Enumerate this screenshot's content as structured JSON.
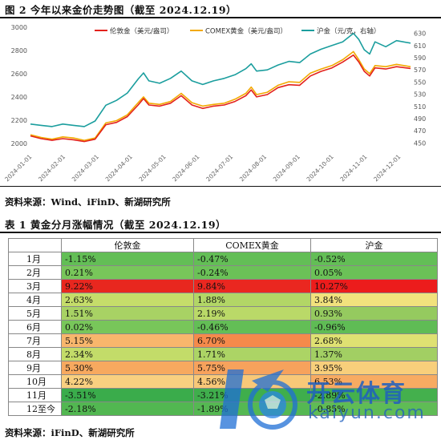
{
  "figure": {
    "title": "图 2 今年以来金价走势图（截至 2024.12.19）",
    "source": "资料来源：Wind、iFinD、新湖研究所"
  },
  "chart_data": {
    "type": "line",
    "legend": [
      "伦敦金（美元/盎司）",
      "COMEX黄金（美元/盎司）",
      "沪金（元/克，右轴）"
    ],
    "legend_placement": "top",
    "colors": {
      "london": "#e3211c",
      "comex": "#f2a900",
      "shfe": "#1b9e9e"
    },
    "y_left_ticks": [
      "3000",
      "2800",
      "2600",
      "2400",
      "2200",
      "2000"
    ],
    "y_left_range": [
      1950,
      3000
    ],
    "y_right_ticks": [
      "630",
      "610",
      "590",
      "570",
      "550",
      "530",
      "510",
      "490",
      "470",
      "450"
    ],
    "y_right_range": [
      440,
      640
    ],
    "x_tick_labels": [
      "2024-01-01",
      "2024-02-01",
      "2024-03-01",
      "2024-04-01",
      "2024-05-01",
      "2024-06-01",
      "2024-07-01",
      "2024-08-01",
      "2024-09-01",
      "2024-10-01",
      "2024-11-01",
      "2024-12-01"
    ],
    "x_range_days": [
      0,
      353
    ],
    "grid": false,
    "series": [
      {
        "name": "伦敦金（美元/盎司）",
        "axis": "left",
        "x": [
          0,
          10,
          20,
          30,
          40,
          50,
          60,
          70,
          80,
          90,
          100,
          105,
          110,
          120,
          130,
          140,
          150,
          160,
          170,
          180,
          190,
          200,
          205,
          210,
          220,
          230,
          240,
          250,
          260,
          270,
          280,
          290,
          300,
          305,
          310,
          315,
          320,
          330,
          340,
          353
        ],
        "y": [
          2063,
          2040,
          2025,
          2040,
          2030,
          2015,
          2035,
          2160,
          2180,
          2230,
          2330,
          2385,
          2330,
          2320,
          2345,
          2410,
          2330,
          2300,
          2320,
          2330,
          2360,
          2410,
          2460,
          2400,
          2420,
          2480,
          2505,
          2500,
          2580,
          2620,
          2650,
          2700,
          2760,
          2700,
          2620,
          2580,
          2650,
          2640,
          2660,
          2645
        ]
      },
      {
        "name": "COMEX黄金（美元/盎司）",
        "axis": "left",
        "x": [
          0,
          10,
          20,
          30,
          40,
          50,
          60,
          70,
          80,
          90,
          100,
          105,
          110,
          120,
          130,
          140,
          150,
          160,
          170,
          180,
          190,
          200,
          205,
          210,
          220,
          230,
          240,
          250,
          260,
          270,
          280,
          290,
          300,
          305,
          310,
          315,
          320,
          330,
          340,
          353
        ],
        "y": [
          2073,
          2050,
          2035,
          2055,
          2045,
          2025,
          2045,
          2175,
          2195,
          2245,
          2350,
          2400,
          2345,
          2335,
          2360,
          2430,
          2350,
          2320,
          2335,
          2345,
          2380,
          2430,
          2485,
          2420,
          2440,
          2500,
          2530,
          2525,
          2605,
          2640,
          2670,
          2720,
          2790,
          2720,
          2640,
          2600,
          2670,
          2660,
          2680,
          2660
        ]
      },
      {
        "name": "沪金（元/克，右轴）",
        "axis": "right",
        "x": [
          0,
          10,
          20,
          30,
          40,
          50,
          60,
          70,
          80,
          90,
          100,
          105,
          110,
          120,
          130,
          140,
          150,
          160,
          170,
          180,
          190,
          200,
          205,
          210,
          220,
          230,
          240,
          250,
          260,
          270,
          280,
          290,
          300,
          305,
          310,
          315,
          320,
          330,
          340,
          353
        ],
        "y": [
          481,
          479,
          477,
          481,
          479,
          477,
          486,
          512,
          520,
          532,
          555,
          565,
          552,
          548,
          556,
          568,
          552,
          546,
          552,
          556,
          562,
          572,
          580,
          568,
          570,
          578,
          584,
          582,
          596,
          604,
          610,
          616,
          630,
          620,
          603,
          596,
          616,
          608,
          618,
          614
        ]
      }
    ]
  },
  "table": {
    "title": "表 1 黄金分月涨幅情况（截至 2024.12.19）",
    "source": "资料来源：iFinD、新湖研究所",
    "headers": [
      "",
      "伦敦金",
      "COMEX黄金",
      "沪金"
    ],
    "rows": [
      {
        "label": "1月",
        "values": [
          "-1.15%",
          "-0.47%",
          "-0.52%"
        ],
        "colors": [
          "#63be56",
          "#63be56",
          "#63be56"
        ]
      },
      {
        "label": "2月",
        "values": [
          "0.21%",
          "-0.24%",
          "0.05%"
        ],
        "colors": [
          "#78c65a",
          "#6bc157",
          "#6bc157"
        ]
      },
      {
        "label": "3月",
        "values": [
          "9.22%",
          "9.84%",
          "10.27%"
        ],
        "colors": [
          "#e8271f",
          "#ea2720",
          "#ec1c1c"
        ]
      },
      {
        "label": "4月",
        "values": [
          "2.63%",
          "1.88%",
          "3.84%"
        ],
        "colors": [
          "#c5dd6a",
          "#b2d666",
          "#f2e27d"
        ]
      },
      {
        "label": "5月",
        "values": [
          "1.51%",
          "2.19%",
          "0.93%"
        ],
        "colors": [
          "#a8d264",
          "#bad968",
          "#95ca5f"
        ]
      },
      {
        "label": "6月",
        "values": [
          "0.02%",
          "-0.46%",
          "-0.96%"
        ],
        "colors": [
          "#78c65a",
          "#63be56",
          "#5fbc55"
        ]
      },
      {
        "label": "7月",
        "values": [
          "5.15%",
          "6.70%",
          "2.68%"
        ],
        "colors": [
          "#f8b66c",
          "#f58a4b",
          "#dfe172"
        ]
      },
      {
        "label": "8月",
        "values": [
          "2.34%",
          "1.71%",
          "1.37%"
        ],
        "colors": [
          "#c3dc69",
          "#acd465",
          "#a2cf63"
        ]
      },
      {
        "label": "9月",
        "values": [
          "5.30%",
          "5.75%",
          "3.95%"
        ],
        "colors": [
          "#f7a95f",
          "#f7a25c",
          "#f8cf7b"
        ]
      },
      {
        "label": "10月",
        "values": [
          "4.22%",
          "4.56%",
          "6.53%"
        ],
        "colors": [
          "#f9d080",
          "#f8c878",
          "#f7ab62"
        ]
      },
      {
        "label": "11月",
        "values": [
          "-3.51%",
          "-3.21%",
          "-2.89%"
        ],
        "colors": [
          "#3aac4b",
          "#3fae4c",
          "#44b04d"
        ]
      },
      {
        "label": "12至今",
        "values": [
          "-2.18%",
          "-1.89%",
          "-0.85%"
        ],
        "colors": [
          "#52b751",
          "#55b852",
          "#5fbc55"
        ]
      }
    ]
  },
  "watermark": {
    "cn": "开云体育",
    "en": "kaiyun.com"
  }
}
